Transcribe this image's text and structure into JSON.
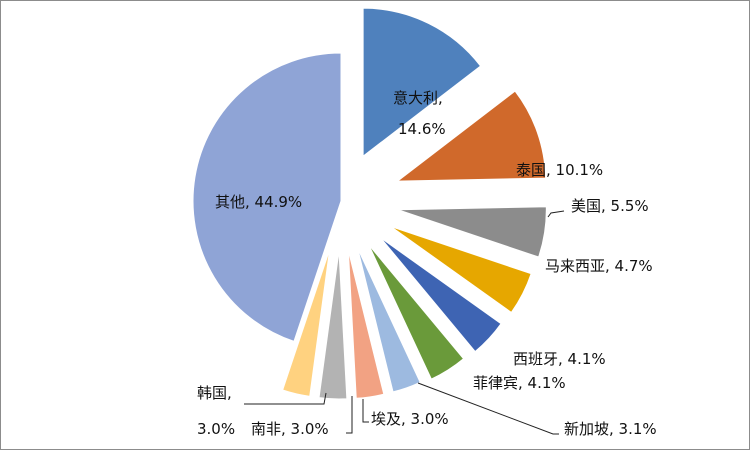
{
  "chart_data": {
    "type": "pie",
    "title": "",
    "exploded": true,
    "start_angle_deg": 0,
    "direction": "clockwise",
    "legend": "none",
    "slices": [
      {
        "name": "意大利",
        "value": 14.6,
        "label": "意大利, 14.6%",
        "color": "#4F81BD"
      },
      {
        "name": "泰国",
        "value": 10.1,
        "label": "泰国, 10.1%",
        "color": "#D0692B"
      },
      {
        "name": "美国",
        "value": 5.5,
        "label": "美国, 5.5%",
        "color": "#8C8C8C"
      },
      {
        "name": "马来西亚",
        "value": 4.7,
        "label": "马来西亚, 4.7%",
        "color": "#E6A700"
      },
      {
        "name": "西班牙",
        "value": 4.1,
        "label": "西班牙, 4.1%",
        "color": "#3E64B3"
      },
      {
        "name": "菲律宾",
        "value": 4.1,
        "label": "菲律宾, 4.1%",
        "color": "#6A9A3A"
      },
      {
        "name": "新加坡",
        "value": 3.1,
        "label": "新加坡, 3.1%",
        "color": "#9DBAE0"
      },
      {
        "name": "埃及",
        "value": 3.0,
        "label": "埃及, 3.0%",
        "color": "#F2A283"
      },
      {
        "name": "南非",
        "value": 3.0,
        "label": "南非, 3.0%",
        "color": "#B3B3B3"
      },
      {
        "name": "韩国",
        "value": 3.0,
        "label": "韩国, 3.0%",
        "color": "#FFD280"
      },
      {
        "name": "其他",
        "value": 44.9,
        "label": "其他, 44.9%",
        "color": "#8FA4D6"
      }
    ]
  }
}
